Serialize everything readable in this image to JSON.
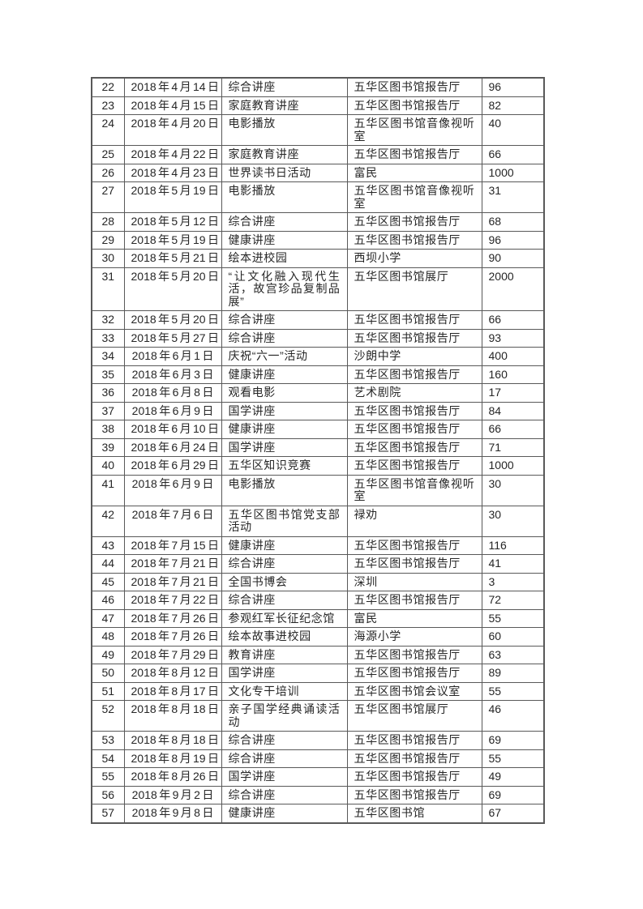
{
  "document": {
    "kind": "library-activity-log-page",
    "background_color": "#ffffff",
    "text_color": "#262626",
    "table_border_color": "#595959"
  },
  "table": {
    "rows": [
      {
        "no": "22",
        "date": "2018 年 4 月 14 日",
        "activity": "综合讲座",
        "venue": "五华区图书馆报告厅",
        "count": "96"
      },
      {
        "no": "23",
        "date": "2018 年 4 月 15 日",
        "activity": "家庭教育讲座",
        "venue": "五华区图书馆报告厅",
        "count": "82"
      },
      {
        "no": "24",
        "date": "2018 年 4 月 20 日",
        "activity": "电影播放",
        "venue": "五华区图书馆音像视听室",
        "count": "40"
      },
      {
        "no": "25",
        "date": "2018 年 4 月 22 日",
        "activity": "家庭教育讲座",
        "venue": "五华区图书馆报告厅",
        "count": "66"
      },
      {
        "no": "26",
        "date": "2018 年 4 月 23 日",
        "activity": "世界读书日活动",
        "venue": "富民",
        "count": "1000"
      },
      {
        "no": "27",
        "date": "2018 年 5 月 19 日",
        "activity": "电影播放",
        "venue": "五华区图书馆音像视听室",
        "count": "31"
      },
      {
        "no": "28",
        "date": "2018 年 5 月 12 日",
        "activity": "综合讲座",
        "venue": "五华区图书馆报告厅",
        "count": "68"
      },
      {
        "no": "29",
        "date": "2018 年 5 月 19 日",
        "activity": "健康讲座",
        "venue": "五华区图书馆报告厅",
        "count": "96"
      },
      {
        "no": "30",
        "date": "2018 年 5 月 21 日",
        "activity": "绘本进校园",
        "venue": "西坝小学",
        "count": "90"
      },
      {
        "no": "31",
        "date": "2018 年 5 月 20 日",
        "activity": "“让文化融入现代生活，故宫珍品复制品展”",
        "venue": "五华区图书馆展厅",
        "count": "2000"
      },
      {
        "no": "32",
        "date": "2018 年 5 月 20 日",
        "activity": "综合讲座",
        "venue": "五华区图书馆报告厅",
        "count": "66"
      },
      {
        "no": "33",
        "date": "2018 年 5 月 27 日",
        "activity": "综合讲座",
        "venue": "五华区图书馆报告厅",
        "count": "93"
      },
      {
        "no": "34",
        "date": "2018 年 6 月 1 日",
        "activity": "庆祝“六一”活动",
        "venue": "沙朗中学",
        "count": "400"
      },
      {
        "no": "35",
        "date": "2018 年 6 月 3 日",
        "activity": "健康讲座",
        "venue": "五华区图书馆报告厅",
        "count": "160"
      },
      {
        "no": "36",
        "date": "2018 年 6 月 8 日",
        "activity": "观看电影",
        "venue": "艺术剧院",
        "count": "17"
      },
      {
        "no": "37",
        "date": "2018 年 6 月 9 日",
        "activity": "国学讲座",
        "venue": "五华区图书馆报告厅",
        "count": "84"
      },
      {
        "no": "38",
        "date": "2018 年 6 月 10 日",
        "activity": "健康讲座",
        "venue": "五华区图书馆报告厅",
        "count": "66"
      },
      {
        "no": "39",
        "date": "2018 年 6 月 24 日",
        "activity": "国学讲座",
        "venue": "五华区图书馆报告厅",
        "count": "71"
      },
      {
        "no": "40",
        "date": "2018 年 6 月 29 日",
        "activity": "五华区知识竞赛",
        "venue": "五华区图书馆报告厅",
        "count": "1000"
      },
      {
        "no": "41",
        "date": "2018 年 6 月 9 日",
        "activity": "电影播放",
        "venue": "五华区图书馆音像视听室",
        "count": "30"
      },
      {
        "no": "42",
        "date": "2018 年 7 月 6 日",
        "activity": "五华区图书馆党支部活动",
        "venue": "禄劝",
        "count": "30"
      },
      {
        "no": "43",
        "date": "2018 年 7 月 15 日",
        "activity": "健康讲座",
        "venue": "五华区图书馆报告厅",
        "count": "116"
      },
      {
        "no": "44",
        "date": "2018 年 7 月 21 日",
        "activity": "综合讲座",
        "venue": "五华区图书馆报告厅",
        "count": "41"
      },
      {
        "no": "45",
        "date": "2018 年 7 月 21 日",
        "activity": "全国书博会",
        "venue": "深圳",
        "count": "3"
      },
      {
        "no": "46",
        "date": "2018 年 7 月 22 日",
        "activity": "综合讲座",
        "venue": "五华区图书馆报告厅",
        "count": "72"
      },
      {
        "no": "47",
        "date": "2018 年 7 月 26 日",
        "activity": "参观红军长征纪念馆",
        "venue": "富民",
        "count": "55"
      },
      {
        "no": "48",
        "date": "2018 年 7 月 26 日",
        "activity": "绘本故事进校园",
        "venue": "海源小学",
        "count": "60"
      },
      {
        "no": "49",
        "date": "2018 年 7 月 29 日",
        "activity": "教育讲座",
        "venue": "五华区图书馆报告厅",
        "count": "63"
      },
      {
        "no": "50",
        "date": "2018 年 8 月 12 日",
        "activity": "国学讲座",
        "venue": "五华区图书馆报告厅",
        "count": "89"
      },
      {
        "no": "51",
        "date": "2018 年 8 月 17 日",
        "activity": "文化专干培训",
        "venue": "五华区图书馆会议室",
        "count": "55"
      },
      {
        "no": "52",
        "date": "2018 年 8 月 18 日",
        "activity": "亲子国学经典诵读活动",
        "venue": "五华区图书馆展厅",
        "count": "46"
      },
      {
        "no": "53",
        "date": "2018 年 8 月 18 日",
        "activity": "综合讲座",
        "venue": "五华区图书馆报告厅",
        "count": "69"
      },
      {
        "no": "54",
        "date": "2018 年 8 月 19 日",
        "activity": "综合讲座",
        "venue": "五华区图书馆报告厅",
        "count": "55"
      },
      {
        "no": "55",
        "date": "2018 年 8 月 26 日",
        "activity": "国学讲座",
        "venue": "五华区图书馆报告厅",
        "count": "49"
      },
      {
        "no": "56",
        "date": "2018 年 9 月 2 日",
        "activity": "综合讲座",
        "venue": "五华区图书馆报告厅",
        "count": "69"
      },
      {
        "no": "57",
        "date": "2018 年 9 月 8 日",
        "activity": "健康讲座",
        "venue": "五华区图书馆",
        "count": "67"
      }
    ]
  }
}
